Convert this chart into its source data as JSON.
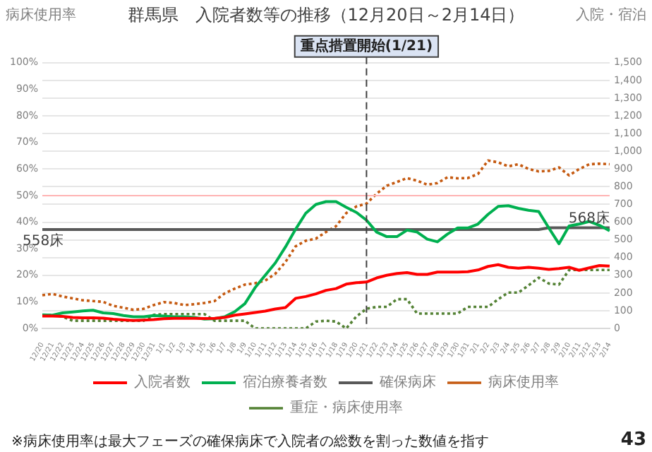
{
  "chart_data": {
    "type": "line",
    "title": "群馬県　入院者数等の推移（12月20日～2月14日）",
    "ylabel": "病床使用率",
    "y2label": "入院・宿泊",
    "categories": [
      "12/20",
      "12/21",
      "12/22",
      "12/23",
      "12/24",
      "12/25",
      "12/26",
      "12/27",
      "12/28",
      "12/29",
      "12/30",
      "12/31",
      "1/1",
      "1/2",
      "1/3",
      "1/4",
      "1/5",
      "1/6",
      "1/7",
      "1/8",
      "1/9",
      "1/10",
      "1/11",
      "1/12",
      "1/13",
      "1/14",
      "1/15",
      "1/16",
      "1/17",
      "1/18",
      "1/19",
      "1/20",
      "1/21",
      "1/22",
      "1/23",
      "1/24",
      "1/25",
      "1/26",
      "1/27",
      "1/28",
      "1/29",
      "1/30",
      "1/31",
      "2/1",
      "2/2",
      "2/3",
      "2/4",
      "2/5",
      "2/6",
      "2/7",
      "2/8",
      "2/9",
      "2/10",
      "2/11",
      "2/12",
      "2/13",
      "2/14"
    ],
    "series": [
      {
        "name": "入院者数",
        "color": "#ff0000",
        "axis": "y2",
        "line_style": "solid",
        "values": [
          70,
          70,
          68,
          62,
          60,
          60,
          58,
          52,
          48,
          45,
          47,
          50,
          55,
          57,
          57,
          57,
          56,
          57,
          62,
          75,
          82,
          90,
          98,
          110,
          118,
          170,
          180,
          195,
          215,
          225,
          250,
          258,
          262,
          285,
          300,
          310,
          315,
          305,
          305,
          318,
          318,
          318,
          320,
          330,
          350,
          360,
          345,
          340,
          345,
          340,
          333,
          338,
          345,
          328,
          342,
          355,
          352
        ]
      },
      {
        "name": "宿泊療養者数",
        "color": "#00b050",
        "axis": "y2",
        "line_style": "solid",
        "values": [
          77,
          75,
          88,
          93,
          99,
          103,
          88,
          84,
          73,
          66,
          66,
          73,
          70,
          66,
          66,
          62,
          53,
          55,
          66,
          95,
          140,
          230,
          300,
          370,
          460,
          560,
          650,
          700,
          716,
          716,
          684,
          655,
          611,
          544,
          518,
          518,
          555,
          544,
          504,
          489,
          533,
          567,
          567,
          589,
          644,
          689,
          693,
          678,
          667,
          660,
          567,
          478,
          578,
          589,
          604,
          582,
          551
        ]
      },
      {
        "name": "確保病床",
        "color": "#595959",
        "axis": "y2",
        "line_style": "solid",
        "values": [
          558,
          558,
          558,
          558,
          558,
          558,
          558,
          558,
          558,
          558,
          558,
          558,
          558,
          558,
          558,
          558,
          558,
          558,
          558,
          558,
          558,
          558,
          558,
          558,
          558,
          558,
          558,
          558,
          558,
          558,
          558,
          558,
          558,
          558,
          558,
          558,
          558,
          558,
          558,
          558,
          558,
          558,
          558,
          558,
          558,
          558,
          558,
          558,
          558,
          558,
          568,
          568,
          568,
          568,
          568,
          568,
          568
        ]
      },
      {
        "name": "病床使用率",
        "color": "#c55a11",
        "axis": "y",
        "line_style": "dotted",
        "values": [
          12.5,
          13,
          12,
          11.3,
          10.6,
          10.3,
          10,
          8.5,
          7.8,
          7,
          7.4,
          8.8,
          9.9,
          9.6,
          8.8,
          9.1,
          9.6,
          10.3,
          13.2,
          15,
          16.5,
          17,
          18,
          20.6,
          25,
          30.9,
          33,
          33.8,
          36.3,
          38.5,
          43.4,
          45.9,
          47,
          50.7,
          53.7,
          55.1,
          56.6,
          55.6,
          54.1,
          54.7,
          56.9,
          56.5,
          56.6,
          58.1,
          63.2,
          62.5,
          61,
          61.8,
          60,
          59.1,
          59.3,
          60.6,
          57.6,
          60,
          61.8,
          62,
          61.8
        ]
      },
      {
        "name": "重症・病床使用率",
        "color": "#548235",
        "axis": "y",
        "line_style": "dotted",
        "values": [
          5.1,
          5.1,
          4.4,
          2.9,
          2.9,
          2.9,
          2.9,
          2.9,
          2.9,
          2.9,
          2.9,
          5.1,
          5.4,
          5.4,
          5.4,
          5.4,
          5.4,
          2.9,
          2.9,
          2.9,
          2.9,
          0,
          0,
          0,
          0,
          0,
          0,
          2.6,
          2.9,
          2.6,
          0,
          4.5,
          7.4,
          8.1,
          8.1,
          11,
          11,
          5.6,
          5.6,
          5.6,
          5.6,
          5.6,
          8.1,
          8.1,
          8.1,
          11,
          13.5,
          13.5,
          16.2,
          19.1,
          16.9,
          16.5,
          22,
          22,
          22,
          22,
          22
        ]
      }
    ],
    "ylim": [
      0,
      100
    ],
    "yticks": [
      {
        "value": 0,
        "label": "0%"
      },
      {
        "value": 10,
        "label": "10%"
      },
      {
        "value": 20,
        "label": "20%"
      },
      {
        "value": 30,
        "label": "30%"
      },
      {
        "value": 40,
        "label": "40%"
      },
      {
        "value": 50,
        "label": "50%"
      },
      {
        "value": 60,
        "label": "60%"
      },
      {
        "value": 70,
        "label": "70%"
      },
      {
        "value": 80,
        "label": "80%"
      },
      {
        "value": 90,
        "label": "90%"
      },
      {
        "value": 100,
        "label": "100%"
      }
    ],
    "y2lim": [
      0,
      1500
    ],
    "y2ticks": [
      0,
      100,
      200,
      300,
      400,
      500,
      600,
      700,
      800,
      900,
      {
        "value": 1000,
        "label": "1,000"
      },
      {
        "value": 1100,
        "label": "1,100"
      },
      {
        "value": 1200,
        "label": "1,200"
      },
      {
        "value": 1300,
        "label": "1,300"
      },
      {
        "value": 1400,
        "label": "1,400"
      },
      {
        "value": 1500,
        "label": "1,500"
      }
    ],
    "ref_lines": [
      {
        "axis": "y",
        "value": 50,
        "color": "#ffb3b3",
        "line_style": "solid"
      },
      {
        "axis": "x",
        "value": "1/21",
        "label": "重点措置開始(1/21)",
        "color": "#404040",
        "line_style": "dashed"
      }
    ],
    "annotations": [
      "558床",
      "568床",
      "※病床使用率は最大フェーズの確保病床で入院者の総数を割った数値を指す",
      "43"
    ],
    "grid": "y",
    "legend": "bottom",
    "marker": "none"
  }
}
